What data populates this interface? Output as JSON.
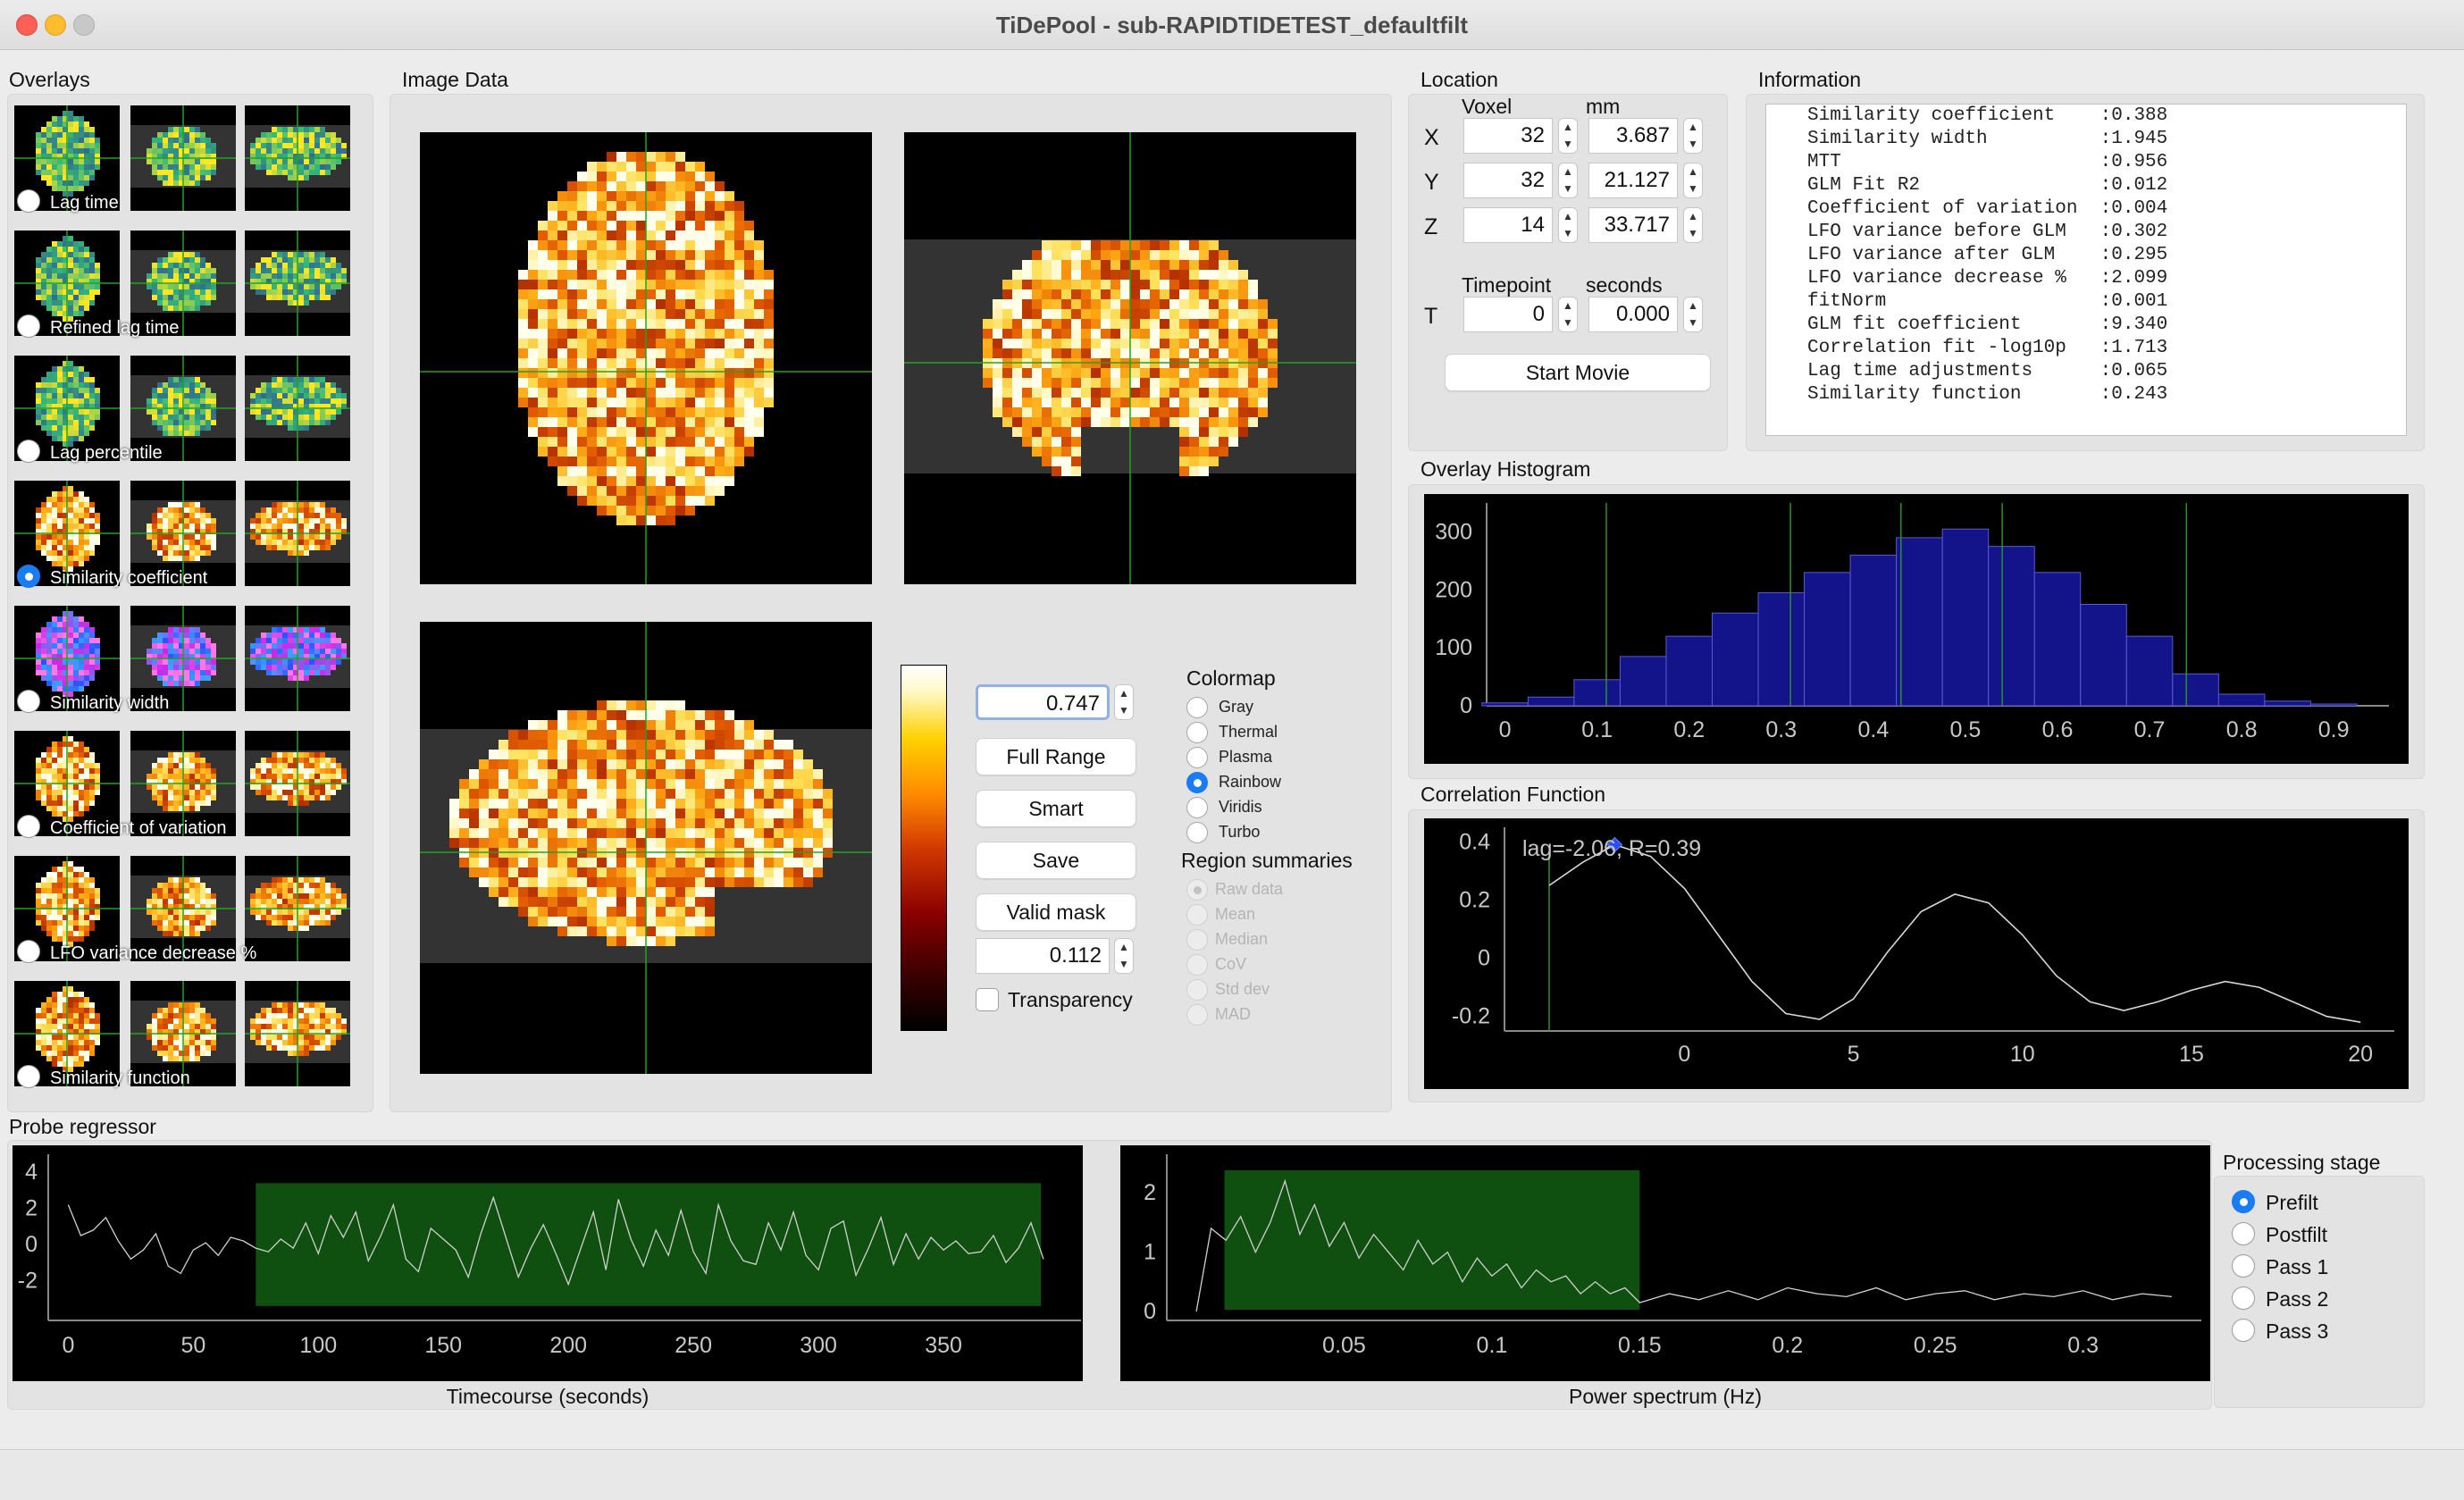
{
  "window": {
    "title": "TiDePool - sub-RAPIDTIDETEST_defaultfilt"
  },
  "overlays": {
    "label": "Overlays",
    "items": [
      {
        "label": "Lag time",
        "selected": false,
        "colormap": "viridis"
      },
      {
        "label": "Refined lag time",
        "selected": false,
        "colormap": "viridis"
      },
      {
        "label": "Lag percentile",
        "selected": false,
        "colormap": "viridis"
      },
      {
        "label": "Similarity coefficient",
        "selected": true,
        "colormap": "heat"
      },
      {
        "label": "Similarity width",
        "selected": false,
        "colormap": "rainbow"
      },
      {
        "label": "Coefficient of variation",
        "selected": false,
        "colormap": "heat"
      },
      {
        "label": "LFO variance decrease %",
        "selected": false,
        "colormap": "heat"
      },
      {
        "label": "Similarity function",
        "selected": false,
        "colormap": "heat"
      }
    ]
  },
  "image_data": {
    "label": "Image Data",
    "max_value": "0.747",
    "min_value": "0.112",
    "buttons": {
      "full_range": "Full Range",
      "smart": "Smart",
      "save": "Save",
      "valid_mask": "Valid mask"
    },
    "transparency_label": "Transparency",
    "transparency_checked": false,
    "colormap_label": "Colormap",
    "colormaps": [
      {
        "label": "Gray",
        "selected": false
      },
      {
        "label": "Thermal",
        "selected": false
      },
      {
        "label": "Plasma",
        "selected": false
      },
      {
        "label": "Rainbow",
        "selected": true
      },
      {
        "label": "Viridis",
        "selected": false
      },
      {
        "label": "Turbo",
        "selected": false
      }
    ],
    "region_label": "Region summaries",
    "regions": [
      {
        "label": "Raw data",
        "selected": true
      },
      {
        "label": "Mean",
        "selected": false
      },
      {
        "label": "Median",
        "selected": false
      },
      {
        "label": "CoV",
        "selected": false
      },
      {
        "label": "Std dev",
        "selected": false
      },
      {
        "label": "MAD",
        "selected": false
      }
    ]
  },
  "location": {
    "label": "Location",
    "voxel_header": "Voxel",
    "mm_header": "mm",
    "rows": [
      {
        "axis": "X",
        "voxel": "32",
        "mm": "3.687"
      },
      {
        "axis": "Y",
        "voxel": "32",
        "mm": "21.127"
      },
      {
        "axis": "Z",
        "voxel": "14",
        "mm": "33.717"
      }
    ],
    "timepoint_header": "Timepoint",
    "seconds_header": "seconds",
    "t_axis": "T",
    "timepoint": "0",
    "seconds": "0.000",
    "start_movie": "Start Movie"
  },
  "information": {
    "label": "Information",
    "rows": [
      "Similarity coefficient    :0.388",
      "Similarity width          :1.945",
      "MTT                       :0.956",
      "GLM Fit R2                :0.012",
      "Coefficient of variation  :0.004",
      "LFO variance before GLM   :0.302",
      "LFO variance after GLM    :0.295",
      "LFO variance decrease %   :2.099",
      "fitNorm                   :0.001",
      "GLM fit coefficient       :9.340",
      "Correlation fit -log10p   :1.713",
      "Lag time adjustments      :0.065",
      "Similarity function       :0.243"
    ]
  },
  "histogram": {
    "label": "Overlay Histogram",
    "y_ticks": [
      "300",
      "200",
      "100",
      "0"
    ],
    "x_ticks": [
      "0",
      "0.1",
      "0.2",
      "0.3",
      "0.4",
      "0.5",
      "0.6",
      "0.7",
      "0.8",
      "0.9"
    ],
    "fill_color": "#14148a",
    "marker_color": "#2f8f2f"
  },
  "correlation": {
    "label": "Correlation Function",
    "annotation": "lag=-2.06, R=0.39",
    "y_ticks": [
      "0.4",
      "0.2",
      "0",
      "-0.2"
    ],
    "x_ticks": [
      "0",
      "5",
      "10",
      "15",
      "20"
    ],
    "peak_color": "#2a4cff"
  },
  "probe": {
    "label": "Probe regressor",
    "timecourse": {
      "xlabel": "Timecourse (seconds)",
      "y_ticks": [
        "4",
        "2",
        "0",
        "-2"
      ],
      "x_ticks": [
        "0",
        "50",
        "100",
        "150",
        "200",
        "250",
        "300",
        "350"
      ]
    },
    "spectrum": {
      "xlabel": "Power spectrum (Hz)",
      "y_ticks": [
        "2",
        "1",
        "0"
      ],
      "x_ticks": [
        "0.05",
        "0.1",
        "0.15",
        "0.2",
        "0.25",
        "0.3"
      ]
    },
    "highlight_color": "#0f4f0f"
  },
  "processing": {
    "label": "Processing stage",
    "stages": [
      {
        "label": "Prefilt",
        "selected": true
      },
      {
        "label": "Postfilt",
        "selected": false
      },
      {
        "label": "Pass 1",
        "selected": false
      },
      {
        "label": "Pass 2",
        "selected": false
      },
      {
        "label": "Pass 3",
        "selected": false
      }
    ]
  },
  "chart_data": [
    {
      "type": "bar",
      "title": "Overlay Histogram",
      "xlabel": "",
      "ylabel": "",
      "xlim": [
        -0.02,
        0.96
      ],
      "ylim": [
        0,
        350
      ],
      "x": [
        0.0,
        0.05,
        0.1,
        0.15,
        0.2,
        0.25,
        0.3,
        0.35,
        0.4,
        0.45,
        0.5,
        0.55,
        0.6,
        0.65,
        0.7,
        0.75,
        0.8,
        0.85,
        0.9
      ],
      "values": [
        5,
        15,
        45,
        85,
        120,
        160,
        195,
        230,
        260,
        290,
        305,
        275,
        230,
        175,
        120,
        55,
        20,
        8,
        3
      ],
      "markers_x": [
        0.11,
        0.31,
        0.43,
        0.54,
        0.74
      ]
    },
    {
      "type": "line",
      "title": "Correlation Function",
      "xlim": [
        -4.0,
        21.0
      ],
      "ylim": [
        -0.25,
        0.45
      ],
      "x": [
        -4,
        -3,
        -2.06,
        -1,
        0,
        1,
        2,
        3,
        4,
        5,
        6,
        7,
        8,
        9,
        10,
        11,
        12,
        13,
        14,
        15,
        16,
        17,
        18,
        19,
        20
      ],
      "y": [
        0.25,
        0.33,
        0.39,
        0.35,
        0.24,
        0.08,
        -0.08,
        -0.19,
        -0.21,
        -0.14,
        0.02,
        0.16,
        0.22,
        0.19,
        0.08,
        -0.06,
        -0.15,
        -0.18,
        -0.15,
        -0.11,
        -0.08,
        -0.1,
        -0.15,
        -0.2,
        -0.22
      ],
      "peak": {
        "x": -2.06,
        "y": 0.39
      },
      "marker_x": -4
    },
    {
      "type": "line",
      "title": "Timecourse (seconds)",
      "xlim": [
        -8,
        405
      ],
      "ylim": [
        -4.2,
        5
      ],
      "highlight": [
        75,
        389
      ],
      "x": [
        0,
        5,
        10,
        15,
        20,
        25,
        30,
        35,
        40,
        45,
        50,
        55,
        60,
        65,
        70,
        75,
        80,
        85,
        90,
        95,
        100,
        105,
        110,
        115,
        120,
        125,
        130,
        135,
        140,
        145,
        150,
        155,
        160,
        165,
        170,
        175,
        180,
        185,
        190,
        195,
        200,
        205,
        210,
        215,
        220,
        225,
        230,
        235,
        240,
        245,
        250,
        255,
        260,
        265,
        270,
        275,
        280,
        285,
        290,
        295,
        300,
        305,
        310,
        315,
        320,
        325,
        330,
        335,
        340,
        345,
        350,
        355,
        360,
        365,
        370,
        375,
        380,
        385,
        390
      ],
      "y": [
        2.2,
        0.5,
        0.8,
        1.5,
        0.2,
        -0.8,
        -0.3,
        0.6,
        -1.2,
        -1.6,
        -0.3,
        0.1,
        -0.6,
        0.4,
        0.2,
        -0.2,
        -0.4,
        0.3,
        -0.2,
        1.2,
        -0.5,
        1.6,
        0.4,
        1.8,
        -0.9,
        0.5,
        2.2,
        -0.8,
        -1.5,
        0.9,
        0.3,
        -0.3,
        -1.8,
        0.6,
        2.6,
        0.4,
        -1.8,
        -0.2,
        1.1,
        -0.5,
        -2.2,
        -0.2,
        1.8,
        -1.4,
        2.5,
        0.3,
        -1.2,
        0.8,
        -0.6,
        1.9,
        -0.4,
        -1.6,
        2.2,
        0.2,
        -0.9,
        -1.1,
        1.2,
        -0.3,
        1.8,
        -0.6,
        -1.4,
        0.9,
        1.3,
        -1.7,
        -0.2,
        1.5,
        -1.1,
        0.6,
        -0.8,
        0.4,
        -0.3,
        0.2,
        -0.5,
        -0.4,
        0.5,
        -1.0,
        -0.2,
        1.2,
        -0.8
      ]
    },
    {
      "type": "line",
      "title": "Power spectrum (Hz)",
      "xlim": [
        -0.01,
        0.34
      ],
      "ylim": [
        -0.15,
        2.65
      ],
      "highlight": [
        0.0095,
        0.15
      ],
      "x": [
        0.0,
        0.005,
        0.01,
        0.015,
        0.02,
        0.025,
        0.03,
        0.035,
        0.04,
        0.045,
        0.05,
        0.055,
        0.06,
        0.065,
        0.07,
        0.075,
        0.08,
        0.085,
        0.09,
        0.095,
        0.1,
        0.105,
        0.11,
        0.115,
        0.12,
        0.125,
        0.13,
        0.135,
        0.14,
        0.145,
        0.15,
        0.16,
        0.17,
        0.18,
        0.19,
        0.2,
        0.21,
        0.22,
        0.23,
        0.24,
        0.25,
        0.26,
        0.27,
        0.28,
        0.29,
        0.3,
        0.31,
        0.32,
        0.33
      ],
      "y": [
        0.0,
        1.4,
        1.2,
        1.6,
        1.0,
        1.5,
        2.2,
        1.3,
        1.8,
        1.1,
        1.5,
        0.9,
        1.3,
        1.0,
        0.7,
        1.2,
        0.8,
        1.0,
        0.5,
        0.9,
        0.6,
        0.8,
        0.4,
        0.7,
        0.5,
        0.6,
        0.3,
        0.5,
        0.3,
        0.4,
        0.15,
        0.3,
        0.2,
        0.35,
        0.2,
        0.4,
        0.3,
        0.25,
        0.4,
        0.2,
        0.3,
        0.35,
        0.2,
        0.3,
        0.25,
        0.35,
        0.2,
        0.3,
        0.25
      ]
    }
  ]
}
